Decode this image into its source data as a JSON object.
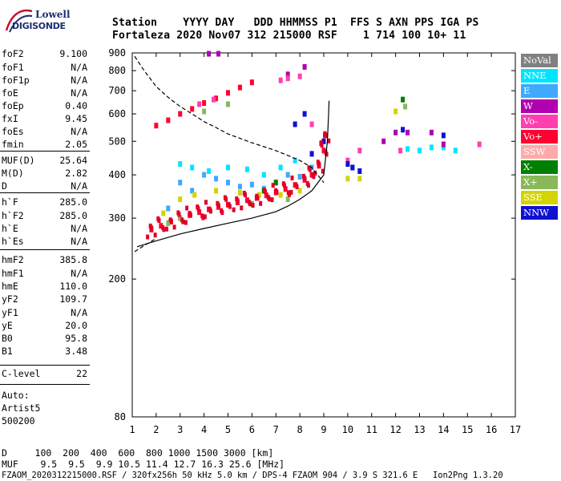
{
  "logo": {
    "line1": "Lowell",
    "line2": "DIGISONDE"
  },
  "header": {
    "line1": "Station    YYYY DAY   DDD HHMMSS P1  FFS S AXN PPS IGA PS",
    "line2": "Fortaleza 2020 Nov07 312 215000 RSF    1 714 100 10+ 11"
  },
  "params": [
    {
      "k": "foF2",
      "v": "9.100"
    },
    {
      "k": "foF1",
      "v": "N/A"
    },
    {
      "k": "foF1p",
      "v": "N/A"
    },
    {
      "k": "foE",
      "v": "N/A"
    },
    {
      "k": "foEp",
      "v": "0.40"
    },
    {
      "k": "fxI",
      "v": "9.45"
    },
    {
      "k": "foEs",
      "v": "N/A"
    },
    {
      "k": "fmin",
      "v": "2.05"
    },
    {
      "k": "MUF(D)",
      "v": "25.64"
    },
    {
      "k": "M(D)",
      "v": "2.82"
    },
    {
      "k": "D",
      "v": "N/A"
    },
    {
      "k": "h`F",
      "v": "285.0"
    },
    {
      "k": "h`F2",
      "v": "285.0"
    },
    {
      "k": "h`E",
      "v": "N/A"
    },
    {
      "k": "h`Es",
      "v": "N/A"
    },
    {
      "k": "hmF2",
      "v": "385.8"
    },
    {
      "k": "hmF1",
      "v": "N/A"
    },
    {
      "k": "hmE",
      "v": "110.0"
    },
    {
      "k": "yF2",
      "v": "109.7"
    },
    {
      "k": "yF1",
      "v": "N/A"
    },
    {
      "k": "yE",
      "v": "20.0"
    },
    {
      "k": "B0",
      "v": "95.8"
    },
    {
      "k": "B1",
      "v": "3.48"
    },
    {
      "k": "C-level",
      "v": "22"
    }
  ],
  "auto": {
    "l1": "Auto:",
    "l2": "Artist5",
    "l3": "500200"
  },
  "legend": [
    {
      "label": "NoVal",
      "color": "#808080"
    },
    {
      "label": "NNE",
      "color": "#00e5ff"
    },
    {
      "label": "E",
      "color": "#3fa9ff"
    },
    {
      "label": "W",
      "color": "#b000b0"
    },
    {
      "label": "Vo-",
      "color": "#ff3fb0"
    },
    {
      "label": "Vo+",
      "color": "#ff0030"
    },
    {
      "label": "SSW",
      "color": "#ffaaaa"
    },
    {
      "label": "X-",
      "color": "#008000"
    },
    {
      "label": "X+",
      "color": "#88b858"
    },
    {
      "label": "SSE",
      "color": "#d4d400"
    },
    {
      "label": "NNW",
      "color": "#1010d0"
    }
  ],
  "footer": {
    "line1": "D     100  200  400  600  800 1000 1500 3000 [km]",
    "line2": "MUF    9.5  9.5  9.9 10.5 11.4 12.7 16.3 25.6 [MHz]",
    "line3": "FZAOM_2020312215000.RSF / 320fx256h 50 kHz 5.0 km / DPS-4 FZAOM 904 / 3.9 S 321.6 E   Ion2Png 1.3.20"
  },
  "chart_data": {
    "type": "scatter",
    "title": "",
    "xlabel": "",
    "ylabel": "",
    "xlim": [
      1,
      17
    ],
    "ylim": [
      80,
      900
    ],
    "y_scale": "log",
    "x_ticks": [
      1,
      2,
      3,
      4,
      5,
      6,
      7,
      8,
      9,
      10,
      11,
      12,
      13,
      14,
      15,
      16,
      17
    ],
    "y_ticks": [
      80,
      200,
      300,
      400,
      500,
      600,
      700,
      800,
      900
    ],
    "grid": false,
    "legend_position": "right",
    "series": [
      {
        "name": "Vo+",
        "color": "#ff0030",
        "points": [
          [
            1.8,
            278
          ],
          [
            2.2,
            285
          ],
          [
            2.6,
            293
          ],
          [
            3.0,
            300
          ],
          [
            3.4,
            306
          ],
          [
            3.8,
            312
          ],
          [
            4.2,
            318
          ],
          [
            4.6,
            323
          ],
          [
            5.0,
            328
          ],
          [
            5.4,
            333
          ],
          [
            5.8,
            338
          ],
          [
            6.2,
            343
          ],
          [
            6.6,
            349
          ],
          [
            7.0,
            356
          ],
          [
            7.4,
            364
          ],
          [
            7.8,
            374
          ],
          [
            8.2,
            387
          ],
          [
            8.5,
            400
          ],
          [
            8.8,
            425
          ],
          [
            9.0,
            470
          ],
          [
            9.05,
            520
          ],
          [
            2.0,
            555
          ],
          [
            2.5,
            575
          ],
          [
            3.0,
            600
          ],
          [
            3.5,
            620
          ],
          [
            4.0,
            645
          ],
          [
            4.5,
            665
          ],
          [
            5.0,
            690
          ],
          [
            5.5,
            715
          ],
          [
            6.0,
            740
          ]
        ]
      },
      {
        "name": "NNE",
        "color": "#00e5ff",
        "points": [
          [
            3.0,
            430
          ],
          [
            3.5,
            420
          ],
          [
            4.2,
            410
          ],
          [
            5.0,
            420
          ],
          [
            5.8,
            415
          ],
          [
            6.5,
            400
          ],
          [
            7.2,
            420
          ],
          [
            7.8,
            440
          ],
          [
            12.5,
            475
          ],
          [
            13.0,
            470
          ],
          [
            13.5,
            480
          ],
          [
            14.0,
            480
          ],
          [
            14.5,
            470
          ]
        ]
      },
      {
        "name": "E",
        "color": "#3fa9ff",
        "points": [
          [
            2.5,
            320
          ],
          [
            3.0,
            380
          ],
          [
            3.5,
            360
          ],
          [
            4.0,
            400
          ],
          [
            4.5,
            390
          ],
          [
            5.0,
            380
          ],
          [
            5.5,
            370
          ],
          [
            6.0,
            375
          ],
          [
            6.5,
            365
          ],
          [
            7.0,
            380
          ],
          [
            7.5,
            400
          ],
          [
            8.0,
            395
          ],
          [
            8.5,
            420
          ]
        ]
      },
      {
        "name": "W",
        "color": "#b000b0",
        "points": [
          [
            4.2,
            895
          ],
          [
            4.6,
            895
          ],
          [
            7.5,
            780
          ],
          [
            8.2,
            820
          ],
          [
            12.0,
            530
          ],
          [
            12.5,
            530
          ],
          [
            13.5,
            530
          ],
          [
            14.0,
            490
          ],
          [
            11.5,
            500
          ]
        ]
      },
      {
        "name": "Vo-",
        "color": "#ff3fb0",
        "points": [
          [
            3.8,
            640
          ],
          [
            4.4,
            660
          ],
          [
            7.2,
            750
          ],
          [
            7.5,
            760
          ],
          [
            8.0,
            770
          ],
          [
            8.5,
            560
          ],
          [
            10.0,
            440
          ],
          [
            10.5,
            470
          ],
          [
            12.2,
            470
          ],
          [
            15.5,
            490
          ]
        ]
      },
      {
        "name": "X-",
        "color": "#008000",
        "points": [
          [
            6.5,
            360
          ],
          [
            7.0,
            380
          ],
          [
            10.2,
            420
          ],
          [
            12.3,
            660
          ]
        ]
      },
      {
        "name": "X+",
        "color": "#88b858",
        "points": [
          [
            2.5,
            290
          ],
          [
            3.0,
            300
          ],
          [
            4.0,
            610
          ],
          [
            5.0,
            640
          ],
          [
            6.0,
            330
          ],
          [
            7.5,
            340
          ],
          [
            12.4,
            630
          ]
        ]
      },
      {
        "name": "SSE",
        "color": "#d4d400",
        "points": [
          [
            2.3,
            310
          ],
          [
            3.0,
            340
          ],
          [
            3.6,
            350
          ],
          [
            4.5,
            360
          ],
          [
            5.5,
            355
          ],
          [
            6.3,
            350
          ],
          [
            7.2,
            350
          ],
          [
            8.0,
            360
          ],
          [
            10.0,
            390
          ],
          [
            10.5,
            390
          ],
          [
            12.0,
            610
          ]
        ]
      },
      {
        "name": "NNW",
        "color": "#1010d0",
        "points": [
          [
            8.5,
            460
          ],
          [
            9.0,
            500
          ],
          [
            10.0,
            430
          ],
          [
            10.2,
            420
          ],
          [
            10.5,
            410
          ],
          [
            7.8,
            560
          ],
          [
            8.2,
            600
          ],
          [
            12.3,
            540
          ],
          [
            14.0,
            520
          ]
        ]
      }
    ],
    "profile_solid": [
      [
        1.2,
        248
      ],
      [
        2,
        258
      ],
      [
        3,
        270
      ],
      [
        4,
        280
      ],
      [
        5,
        290
      ],
      [
        6,
        300
      ],
      [
        7,
        313
      ],
      [
        7.5,
        325
      ],
      [
        8,
        340
      ],
      [
        8.5,
        360
      ],
      [
        9.0,
        400
      ],
      [
        9.15,
        500
      ],
      [
        9.2,
        600
      ],
      [
        9.22,
        655
      ]
    ],
    "profile_dashed": [
      [
        1.1,
        880
      ],
      [
        1.5,
        800
      ],
      [
        2,
        720
      ],
      [
        2.5,
        670
      ],
      [
        3,
        630
      ],
      [
        3.5,
        600
      ],
      [
        4,
        570
      ],
      [
        4.5,
        548
      ],
      [
        5,
        525
      ],
      [
        6,
        495
      ],
      [
        7,
        470
      ],
      [
        7.5,
        455
      ],
      [
        8,
        440
      ],
      [
        8.5,
        420
      ],
      [
        9,
        380
      ]
    ],
    "profile_dashed_low": [
      [
        1.1,
        240
      ],
      [
        1.5,
        250
      ],
      [
        2,
        262
      ]
    ]
  }
}
